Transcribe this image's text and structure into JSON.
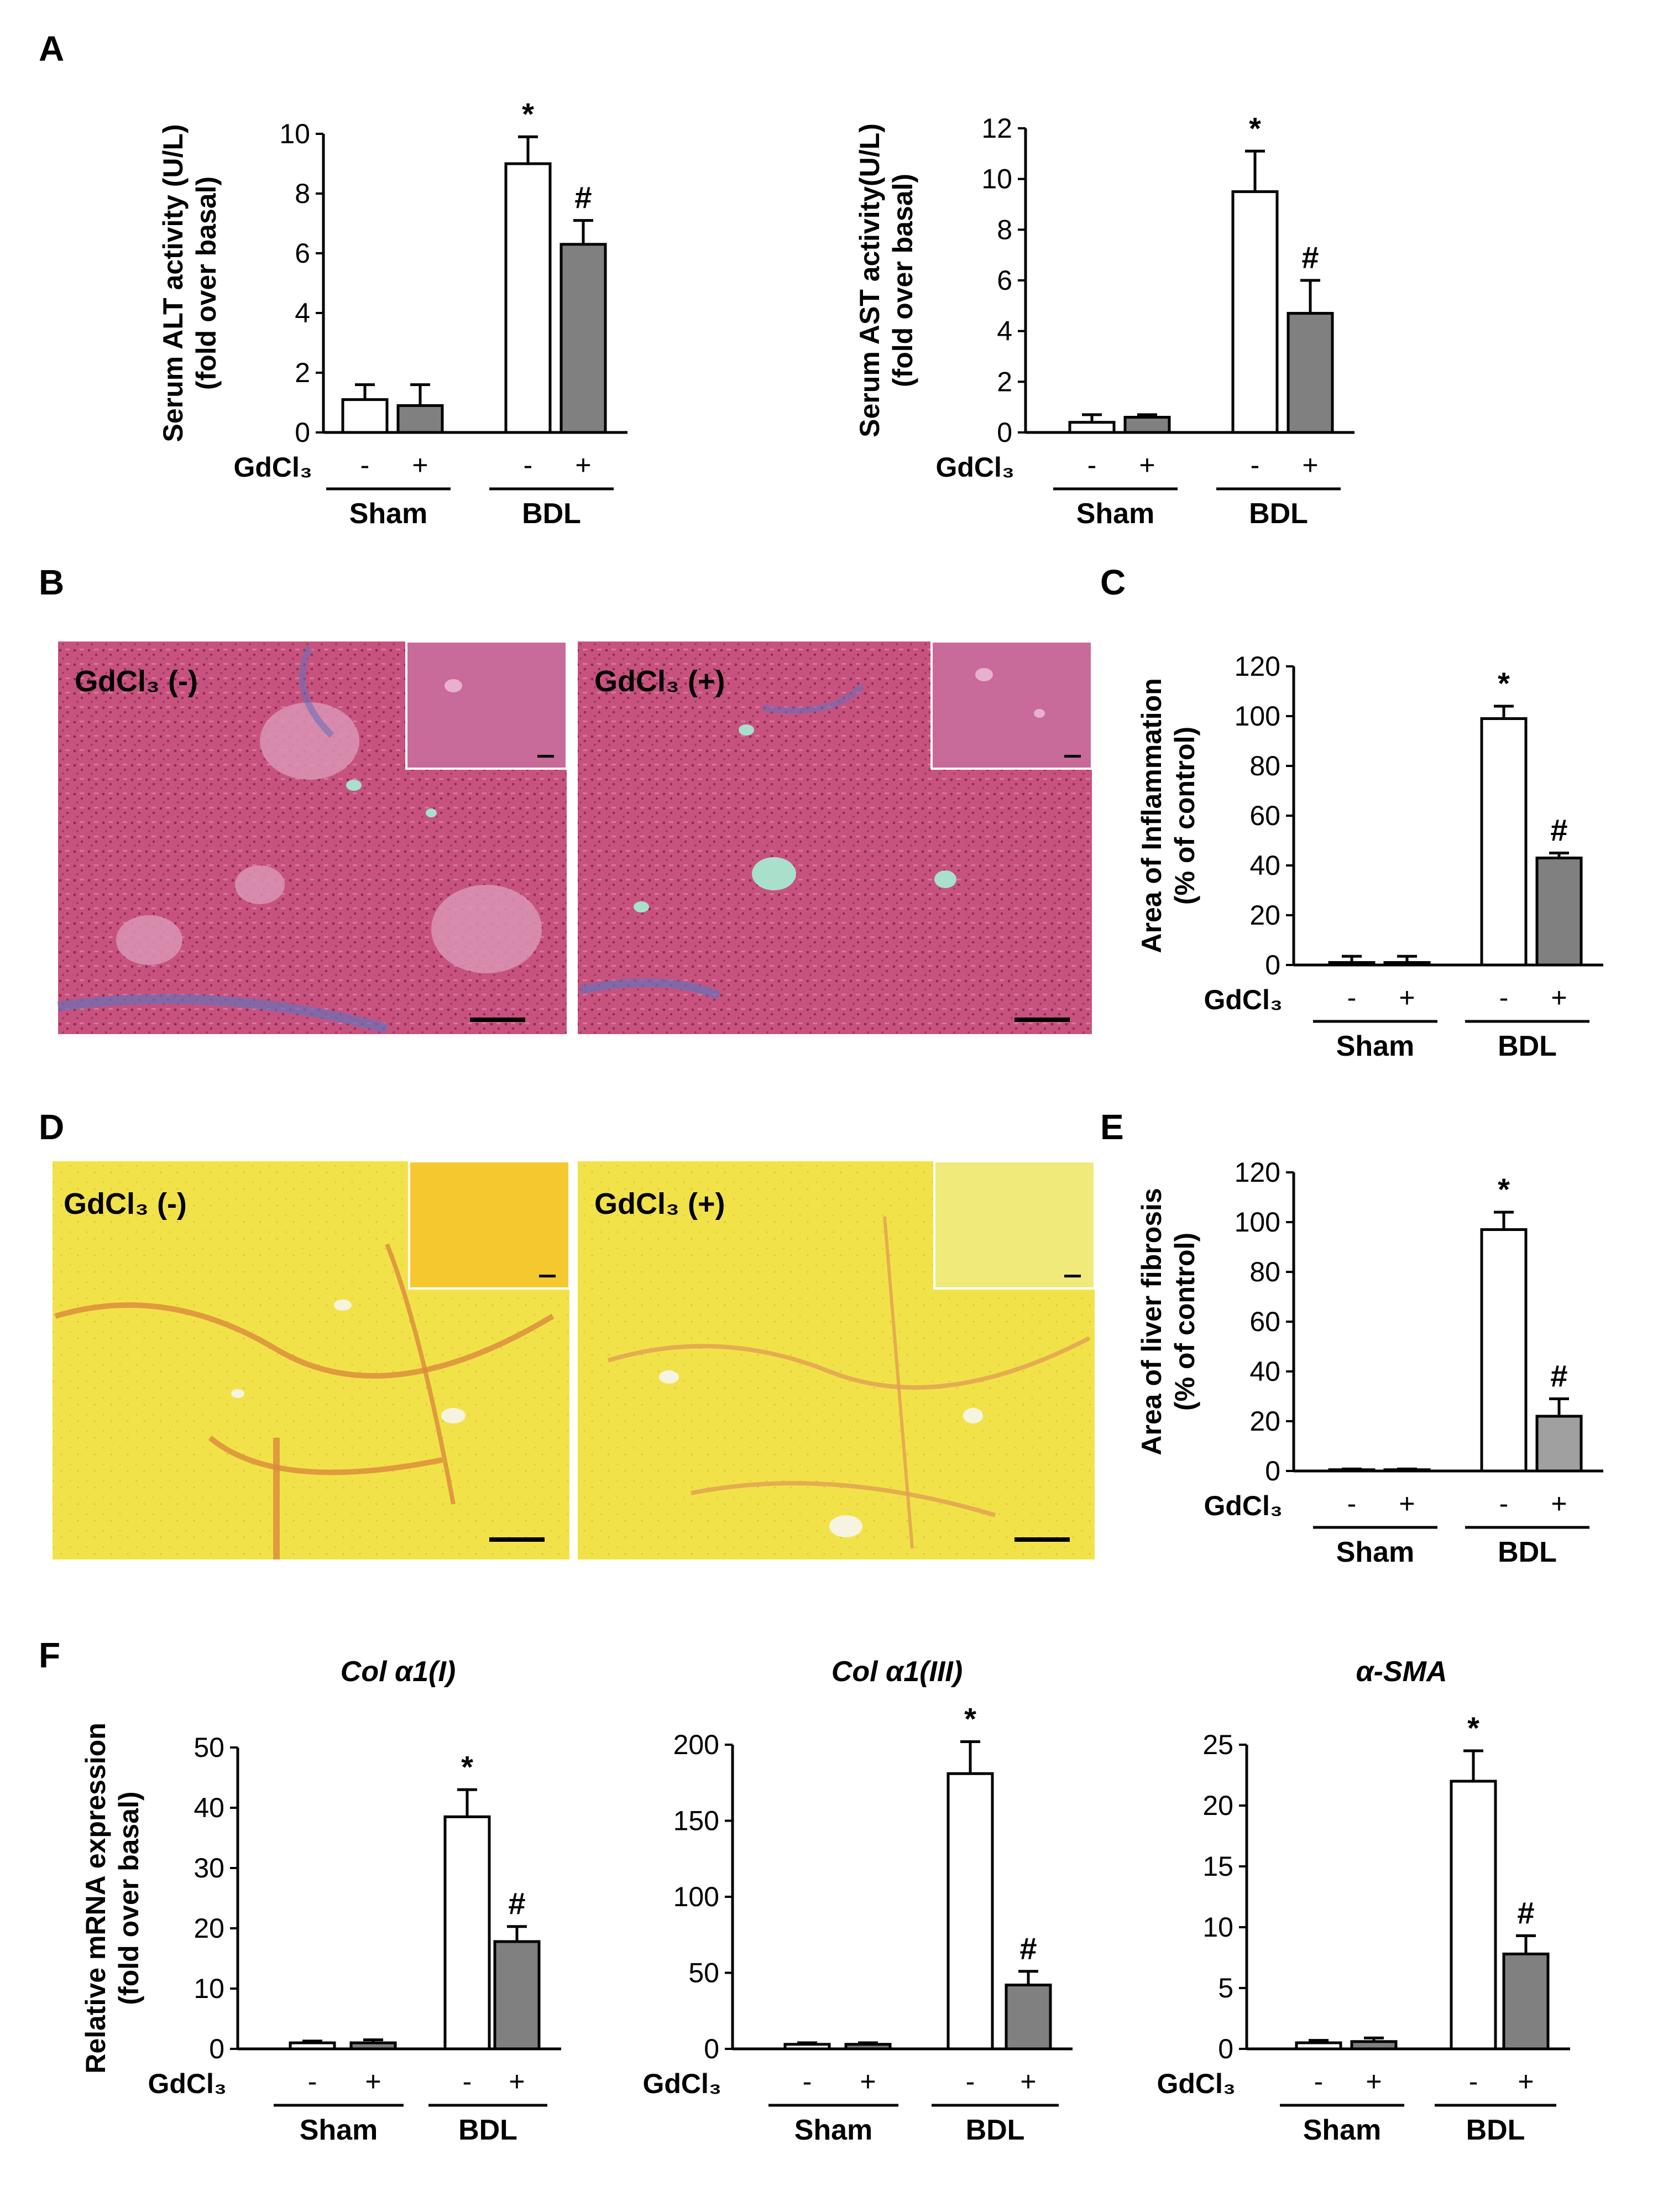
{
  "panels": {
    "A": "A",
    "B": "B",
    "C": "C",
    "D": "D",
    "E": "E",
    "F": "F"
  },
  "histology": {
    "B": {
      "minus_label": "GdCl₃ (-)",
      "plus_label": "GdCl₃ (+)",
      "colors": {
        "tissue": "#c8527e",
        "tissue_dark": "#a83a6a",
        "vessel": "#a8e0cc",
        "fibrosis": "#6a70b8"
      }
    },
    "D": {
      "minus_label": "GdCl₃ (-)",
      "plus_label": "GdCl₃ (+)",
      "colors": {
        "tissue": "#f2e24a",
        "septa": "#d98a3a",
        "vessel": "#f6f4e0"
      }
    }
  },
  "conditions": {
    "gd_label": "GdCl₃",
    "signs": [
      "-",
      "+",
      "-",
      "+"
    ],
    "groups": [
      "Sham",
      "BDL"
    ]
  },
  "chart_data": [
    {
      "id": "A1",
      "type": "bar",
      "title": "",
      "ylabel": "Serum ALT activity (U/L)",
      "ylabel2": "(fold over basal)",
      "categories": [
        "Sham -",
        "Sham +",
        "BDL -",
        "BDL +"
      ],
      "values": [
        1.1,
        0.9,
        9.0,
        6.3
      ],
      "errors": [
        0.5,
        0.7,
        0.9,
        0.8
      ],
      "fills": [
        "#ffffff",
        "#808080",
        "#ffffff",
        "#808080"
      ],
      "ylim": [
        0,
        10
      ],
      "yticks": [
        0,
        2,
        4,
        6,
        8,
        10
      ],
      "markers": [
        "",
        "",
        "*",
        "#"
      ]
    },
    {
      "id": "A2",
      "type": "bar",
      "title": "",
      "ylabel": "Serum AST activity(U/L)",
      "ylabel2": "(fold over basal)",
      "categories": [
        "Sham -",
        "Sham +",
        "BDL -",
        "BDL +"
      ],
      "values": [
        0.4,
        0.6,
        9.5,
        4.7
      ],
      "errors": [
        0.3,
        0.1,
        1.6,
        1.3
      ],
      "fills": [
        "#ffffff",
        "#808080",
        "#ffffff",
        "#808080"
      ],
      "ylim": [
        0,
        12
      ],
      "yticks": [
        0,
        2,
        4,
        6,
        8,
        10,
        12
      ],
      "markers": [
        "",
        "",
        "*",
        "#"
      ]
    },
    {
      "id": "C",
      "type": "bar",
      "title": "",
      "ylabel": "Area of Inflammation",
      "ylabel2": "(% of control)",
      "categories": [
        "Sham -",
        "Sham +",
        "BDL -",
        "BDL +"
      ],
      "values": [
        1.0,
        1.0,
        99.0,
        43.0
      ],
      "errors": [
        2.5,
        2.5,
        5.0,
        2.0
      ],
      "fills": [
        "#ffffff",
        "#808080",
        "#ffffff",
        "#808080"
      ],
      "ylim": [
        0,
        120
      ],
      "yticks": [
        0,
        20,
        40,
        60,
        80,
        100,
        120
      ],
      "markers": [
        "",
        "",
        "*",
        "#"
      ]
    },
    {
      "id": "E",
      "type": "bar",
      "title": "",
      "ylabel": "Area of liver fibrosis",
      "ylabel2": "(% of control)",
      "categories": [
        "Sham -",
        "Sham +",
        "BDL -",
        "BDL +"
      ],
      "values": [
        0.5,
        0.5,
        97.0,
        22.0
      ],
      "errors": [
        0.3,
        0.3,
        7.0,
        7.0
      ],
      "fills": [
        "#ffffff",
        "#a0a0a0",
        "#ffffff",
        "#a0a0a0"
      ],
      "ylim": [
        0,
        120
      ],
      "yticks": [
        0,
        20,
        40,
        60,
        80,
        100,
        120
      ],
      "markers": [
        "",
        "",
        "*",
        "#"
      ]
    },
    {
      "id": "F1",
      "type": "bar",
      "title": "Col α1(I)",
      "ylabel": "Relative mRNA expression",
      "ylabel2": "(fold over basal)",
      "categories": [
        "Sham -",
        "Sham +",
        "BDL -",
        "BDL +"
      ],
      "values": [
        1.0,
        1.0,
        38.5,
        17.8
      ],
      "errors": [
        0.3,
        0.5,
        4.5,
        2.5
      ],
      "fills": [
        "#ffffff",
        "#808080",
        "#ffffff",
        "#808080"
      ],
      "ylim": [
        0,
        50
      ],
      "yticks": [
        0,
        10,
        20,
        30,
        40,
        50
      ],
      "markers": [
        "",
        "",
        "*",
        "#"
      ]
    },
    {
      "id": "F2",
      "type": "bar",
      "title": "Col α1(III)",
      "ylabel": "",
      "ylabel2": "",
      "categories": [
        "Sham -",
        "Sham +",
        "BDL -",
        "BDL +"
      ],
      "values": [
        3.0,
        3.0,
        181.0,
        42.0
      ],
      "errors": [
        1.0,
        1.0,
        21.0,
        9.0
      ],
      "fills": [
        "#ffffff",
        "#808080",
        "#ffffff",
        "#808080"
      ],
      "ylim": [
        0,
        200
      ],
      "yticks": [
        0,
        50,
        100,
        150,
        200
      ],
      "markers": [
        "",
        "",
        "*",
        "#"
      ]
    },
    {
      "id": "F3",
      "type": "bar",
      "title": "α-SMA",
      "ylabel": "",
      "ylabel2": "",
      "categories": [
        "Sham -",
        "Sham +",
        "BDL -",
        "BDL +"
      ],
      "values": [
        0.5,
        0.6,
        22.0,
        7.8
      ],
      "errors": [
        0.2,
        0.3,
        2.5,
        1.5
      ],
      "fills": [
        "#ffffff",
        "#808080",
        "#ffffff",
        "#808080"
      ],
      "ylim": [
        0,
        25
      ],
      "yticks": [
        0,
        5,
        10,
        15,
        20,
        25
      ],
      "markers": [
        "",
        "",
        "*",
        "#"
      ]
    }
  ]
}
